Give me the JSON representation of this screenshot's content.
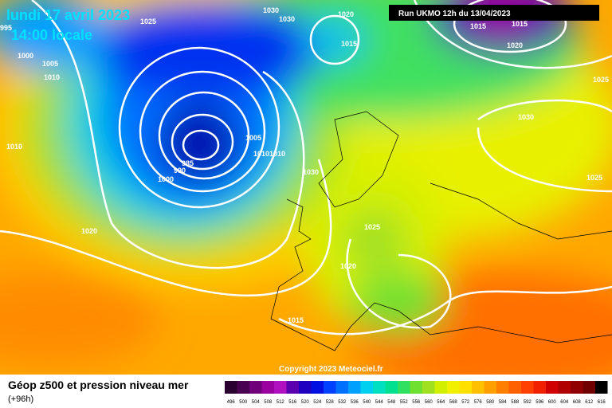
{
  "header": {
    "date": "lundi 17 avril 2023",
    "time": "14:00 locale",
    "run": "Run UKMO 12h du 13/04/2023"
  },
  "isobar_labels": [
    995,
    1025,
    1030,
    1030,
    1020,
    1015,
    1015,
    1020,
    1000,
    1005,
    1010,
    1015,
    1025,
    1030,
    1010,
    1005,
    1010,
    1010,
    985,
    990,
    1000,
    1030,
    1025,
    1020,
    1025,
    1020,
    1015
  ],
  "copyright": "Copyright 2023 Meteociel.fr",
  "footer": {
    "title": "Géop z500 et pression niveau mer",
    "lead": "(+96h)"
  },
  "scale": {
    "values": [
      496,
      500,
      504,
      508,
      512,
      516,
      520,
      524,
      528,
      532,
      536,
      540,
      544,
      548,
      552,
      556,
      560,
      564,
      568,
      572,
      576,
      580,
      584,
      588,
      592,
      596,
      600,
      604,
      608,
      612,
      616
    ],
    "colors": [
      "#2a0030",
      "#4a0050",
      "#70007a",
      "#9a00a0",
      "#b010c0",
      "#5a00b0",
      "#2000c0",
      "#0010e0",
      "#0040ff",
      "#0070ff",
      "#00a0ff",
      "#00d0f0",
      "#00e0c0",
      "#00e090",
      "#30e060",
      "#70e030",
      "#a0e020",
      "#d0f000",
      "#f0f000",
      "#ffe000",
      "#ffc000",
      "#ffa000",
      "#ff8000",
      "#ff6000",
      "#ff4000",
      "#f02000",
      "#d00000",
      "#b00000",
      "#900000",
      "#700000",
      "#000000"
    ]
  }
}
